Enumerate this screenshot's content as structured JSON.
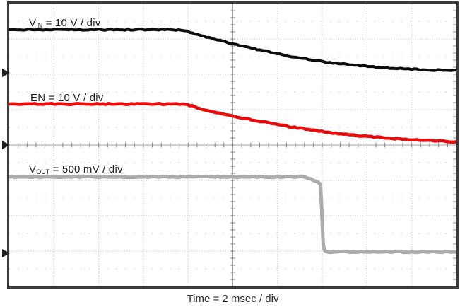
{
  "window": {
    "kind": "oscilloscope-capture"
  },
  "chart_data": {
    "type": "line",
    "title": "",
    "xlabel": "Time = 2 msec / div",
    "x_divisions": 10,
    "y_divisions": 8,
    "x_div_scale": "2 msec / div",
    "grid": "dotted graticule, ticked center axes, ticked right edge",
    "colors": {
      "border": "#3b3b3b",
      "grid_dotted": "#b8b8b8",
      "grid_half_dots": "#c9c9c9",
      "center_line": "#a3a3a3",
      "tick": "#8a8a8a",
      "edge_tick": "#9a9a9a",
      "marker": "#1f1f1f"
    },
    "series": [
      {
        "name": "VIN",
        "label": {
          "base": "V",
          "sub": "IN",
          "rest": " = 10 V / div"
        },
        "color": "#0d0d0d",
        "stroke_width": 4,
        "scale": "10 V / div",
        "zero_marker_div": 1.96,
        "points_div": [
          [
            0,
            0.74
          ],
          [
            3.79,
            0.74
          ],
          [
            3.98,
            0.79
          ],
          [
            4.22,
            0.88
          ],
          [
            4.53,
            0.99
          ],
          [
            4.96,
            1.12
          ],
          [
            5.48,
            1.28
          ],
          [
            5.99,
            1.42
          ],
          [
            6.51,
            1.54
          ],
          [
            6.99,
            1.64
          ],
          [
            7.54,
            1.72
          ],
          [
            8.02,
            1.78
          ],
          [
            8.57,
            1.83
          ],
          [
            9.05,
            1.86
          ],
          [
            9.52,
            1.88
          ],
          [
            10,
            1.9
          ]
        ]
      },
      {
        "name": "EN",
        "label": {
          "base": "EN",
          "sub": "",
          "rest": " = 10 V / div"
        },
        "color": "#e80d0d",
        "stroke_width": 4.5,
        "scale": "10 V / div",
        "zero_marker_div": 4.0,
        "points_div": [
          [
            0,
            2.84
          ],
          [
            3.87,
            2.84
          ],
          [
            4.09,
            2.9
          ],
          [
            4.37,
            3.0
          ],
          [
            4.69,
            3.1
          ],
          [
            4.96,
            3.17
          ],
          [
            5.48,
            3.3
          ],
          [
            5.99,
            3.42
          ],
          [
            6.51,
            3.53
          ],
          [
            6.99,
            3.62
          ],
          [
            7.54,
            3.7
          ],
          [
            8.02,
            3.76
          ],
          [
            8.49,
            3.81
          ],
          [
            9.05,
            3.85
          ],
          [
            9.52,
            3.88
          ],
          [
            10,
            3.91
          ]
        ]
      },
      {
        "name": "VOUT",
        "label": {
          "base": "V",
          "sub": "OUT",
          "rest": " = 500 mV / div"
        },
        "color": "#ababab",
        "stroke_width": 5,
        "scale": "500 mV / div",
        "zero_marker_div": 7.06,
        "points_div": [
          [
            0,
            4.9
          ],
          [
            6.56,
            4.9
          ],
          [
            6.75,
            4.96
          ],
          [
            6.89,
            5.04
          ],
          [
            6.96,
            5.12
          ],
          [
            6.99,
            5.9
          ],
          [
            7.02,
            6.8
          ],
          [
            7.05,
            6.98
          ],
          [
            7.12,
            7.02
          ],
          [
            10,
            7.02
          ]
        ]
      }
    ]
  }
}
